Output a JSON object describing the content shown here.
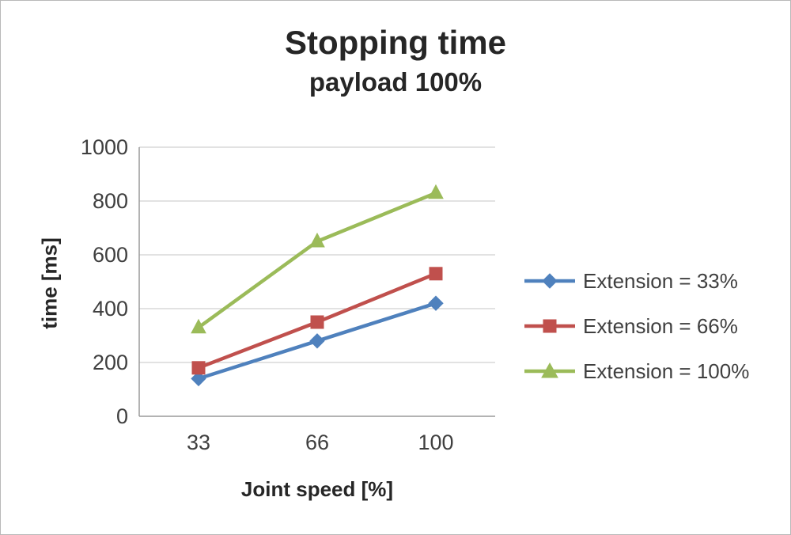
{
  "chart_data": {
    "type": "line",
    "title": "Stopping time",
    "subtitle": "payload 100%",
    "xlabel": "Joint speed [%]",
    "ylabel": "time [ms]",
    "categories": [
      "33",
      "66",
      "100"
    ],
    "series": [
      {
        "name": "Extension = 33%",
        "color": "#4F81BD",
        "marker": "diamond",
        "values": [
          140,
          280,
          420
        ]
      },
      {
        "name": "Extension = 66%",
        "color": "#C0504D",
        "marker": "square",
        "values": [
          180,
          350,
          530
        ]
      },
      {
        "name": "Extension = 100%",
        "color": "#9BBB59",
        "marker": "triangle",
        "values": [
          330,
          650,
          830
        ]
      }
    ],
    "ylim": [
      0,
      1000
    ],
    "ytick_step": 200,
    "grid": true,
    "legend_position": "right",
    "colors": {
      "gridline": "#c6c6c6",
      "axis": "#9a9a9a",
      "tick_label": "#3f3f3f"
    }
  }
}
